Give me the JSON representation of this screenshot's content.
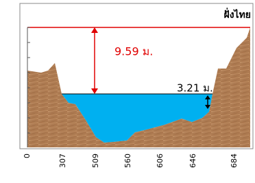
{
  "header": {
    "title": "ฝั่งไทย"
  },
  "annotations": {
    "height_label": "9.59 ม.",
    "water_label": "3.21 ม."
  },
  "axis": {
    "labels": [
      "0",
      "307",
      "509",
      "560",
      "606",
      "646",
      "684"
    ]
  }
}
